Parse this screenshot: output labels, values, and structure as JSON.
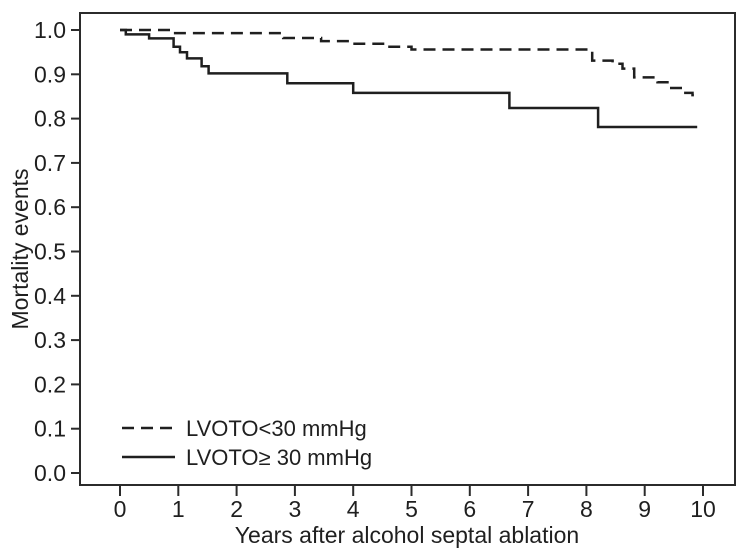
{
  "chart_data": {
    "type": "line",
    "subtype": "kaplan-meier-step",
    "title": "",
    "xlabel": "Years after alcohol septal ablation",
    "ylabel": "Mortality events",
    "xlim": [
      -0.686,
      10.549
    ],
    "ylim": [
      -0.0271,
      1.0384
    ],
    "x_ticks": [
      0,
      1,
      2,
      3,
      4,
      5,
      6,
      7,
      8,
      9,
      10
    ],
    "x_tick_labels": [
      "0",
      "1",
      "2",
      "3",
      "4",
      "5",
      "6",
      "7",
      "8",
      "9",
      "10"
    ],
    "y_ticks": [
      0.0,
      0.1,
      0.2,
      0.3,
      0.4,
      0.5,
      0.6,
      0.7,
      0.8,
      0.9,
      1.0
    ],
    "y_tick_labels": [
      "0.0",
      "0.1",
      "0.2",
      "0.3",
      "0.4",
      "0.5",
      "0.6",
      "0.7",
      "0.8",
      "0.9",
      "1.0"
    ],
    "grid": false,
    "legend_position": "lower-left-inside",
    "series": [
      {
        "name": "LVOTO<30 mmHg",
        "style": "dashed",
        "color": "#1f1f1f",
        "x": [
          0,
          0.9,
          2.8,
          3.45,
          4.0,
          4.55,
          5.0,
          8.1,
          8.45,
          8.62,
          8.82,
          9.22,
          9.42,
          9.66,
          9.82,
          9.93
        ],
        "y": [
          1.0,
          0.993,
          0.982,
          0.975,
          0.969,
          0.962,
          0.956,
          0.931,
          0.924,
          0.913,
          0.893,
          0.882,
          0.869,
          0.858,
          0.853,
          0.853
        ]
      },
      {
        "name": "LVOTO≥ 30 mmHg",
        "style": "solid",
        "color": "#1f1f1f",
        "x": [
          0,
          0.1,
          0.5,
          0.92,
          1.03,
          1.15,
          1.4,
          1.52,
          2.87,
          4.0,
          6.68,
          8.2,
          9.9
        ],
        "y": [
          1.0,
          0.99,
          0.981,
          0.962,
          0.95,
          0.936,
          0.918,
          0.902,
          0.88,
          0.858,
          0.824,
          0.781,
          0.781
        ]
      }
    ]
  },
  "colors": {
    "background": "#ffffff",
    "axis": "#2b2b2b",
    "line": "#1f1f1f",
    "text": "#1f1f1f"
  }
}
